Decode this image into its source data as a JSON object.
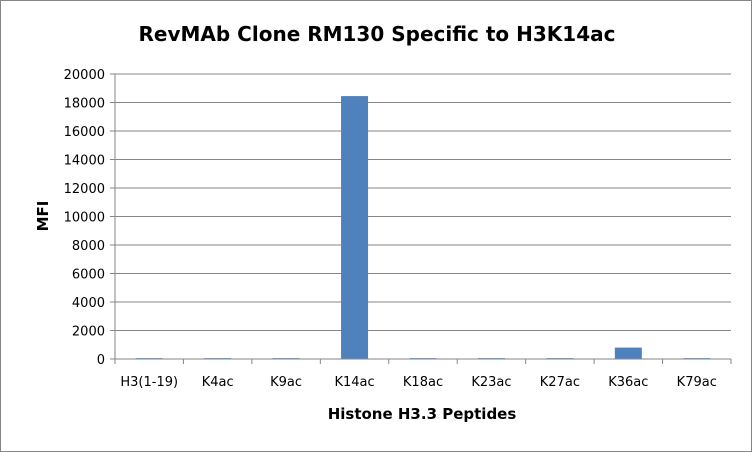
{
  "chart_data": {
    "type": "bar",
    "title": "RevMAb Clone RM130 Specific to H3K14ac",
    "xlabel": "Histone H3.3 Peptides",
    "ylabel": "MFI",
    "categories": [
      "H3(1-19)",
      "K4ac",
      "K9ac",
      "K14ac",
      "K18ac",
      "K23ac",
      "K27ac",
      "K36ac",
      "K79ac"
    ],
    "values": [
      60,
      60,
      60,
      18450,
      60,
      60,
      60,
      800,
      60
    ],
    "ylim": [
      0,
      20000
    ],
    "yticks": [
      0,
      2000,
      4000,
      6000,
      8000,
      10000,
      12000,
      14000,
      16000,
      18000,
      20000
    ],
    "grid": true,
    "legend": "none",
    "bar_color": "#4f81bd",
    "grid_color": "#868686",
    "axis_color": "#868686"
  }
}
